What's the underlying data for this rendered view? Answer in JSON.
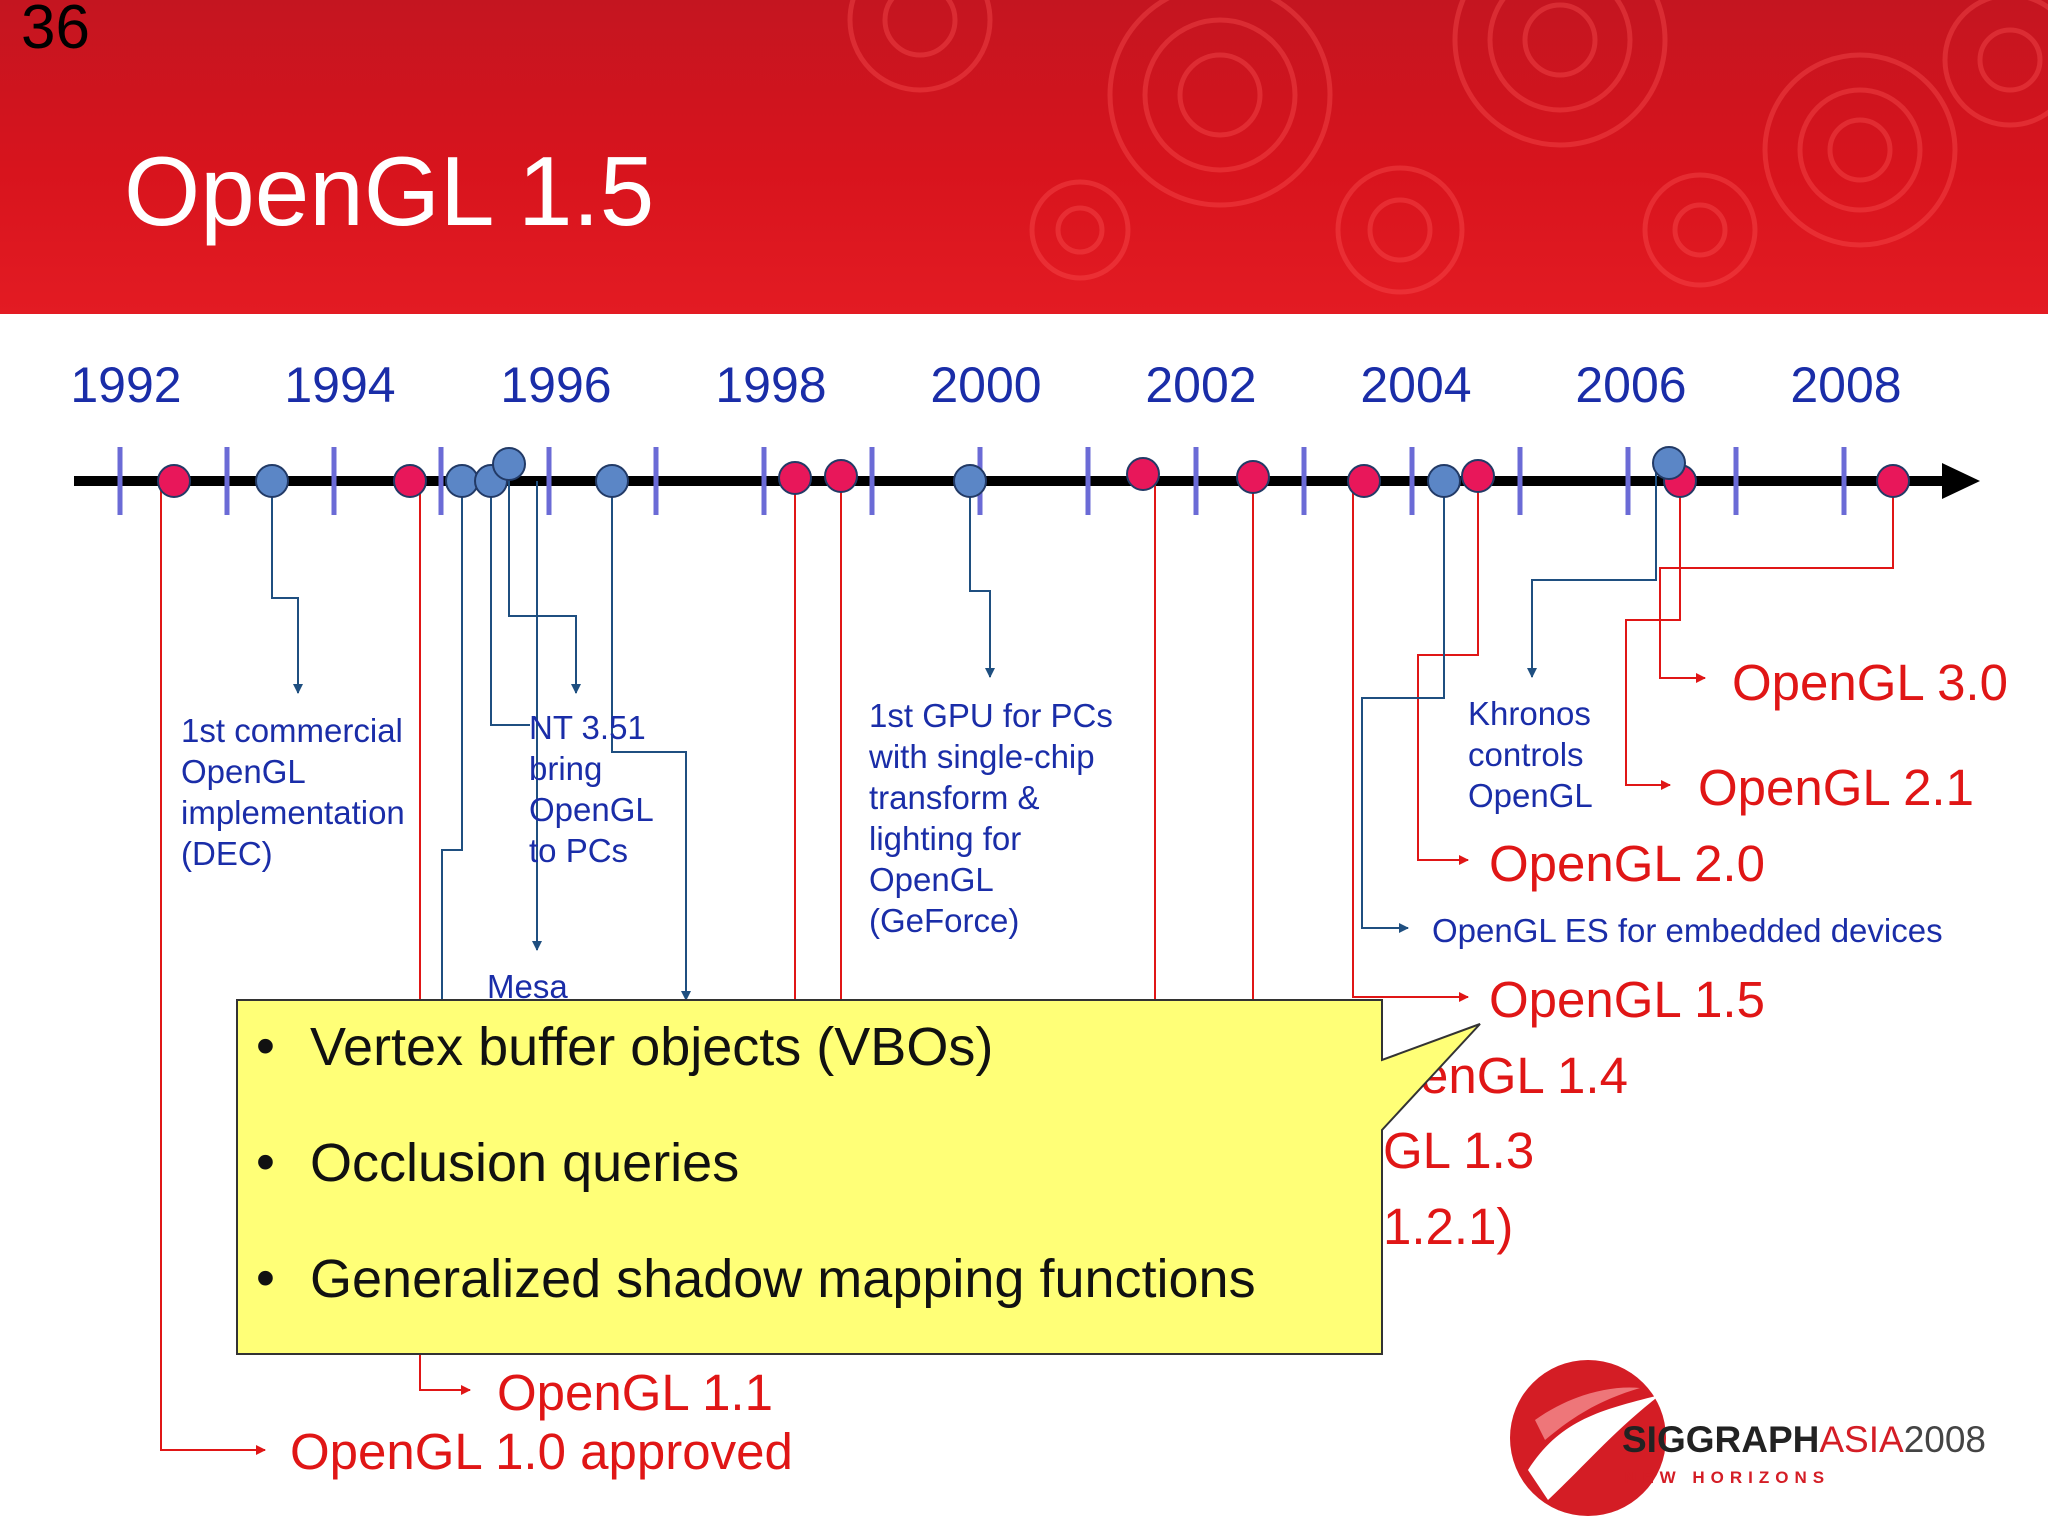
{
  "slide": {
    "number": "36",
    "title": "OpenGL 1.5"
  },
  "timeline": {
    "years": [
      "1992",
      "1994",
      "1996",
      "1998",
      "2000",
      "2002",
      "2004",
      "2006",
      "2008"
    ]
  },
  "notes": {
    "commercial": [
      "1st commercial",
      "OpenGL",
      "implementation",
      "(DEC)"
    ],
    "nt351": [
      "NT 3.51",
      "bring",
      "OpenGL",
      "to PCs"
    ],
    "mesa": "Mesa",
    "gpu": [
      "1st GPU for PCs",
      "with single-chip",
      "transform &",
      "lighting for",
      "OpenGL",
      "(GeForce)"
    ],
    "khronos": [
      "Khronos",
      "controls",
      "OpenGL"
    ],
    "es": "OpenGL ES for embedded devices"
  },
  "versions": {
    "v30": "OpenGL 3.0",
    "v21": "OpenGL 2.1",
    "v20": "OpenGL 2.0",
    "v15": "OpenGL 1.5",
    "v14_partial": "enGL 1.4",
    "v13_partial": "GL 1.3",
    "v121_partial": "1.2.1)",
    "v11": "OpenGL 1.1",
    "v10": "OpenGL 1.0 approved"
  },
  "callout": {
    "bullets": [
      "Vertex buffer objects (VBOs)",
      "Occlusion queries",
      "Generalized shadow mapping functions"
    ],
    "bullet_glyph": "•"
  },
  "logo": {
    "main": "SIGGRAPH",
    "asia": "ASIA",
    "year": "2008",
    "tagline": "NEW HORIZONS"
  },
  "colors": {
    "header": "#d8141d",
    "red": "#e01616",
    "blue": "#1a2da8",
    "callout": "#ffff77"
  }
}
